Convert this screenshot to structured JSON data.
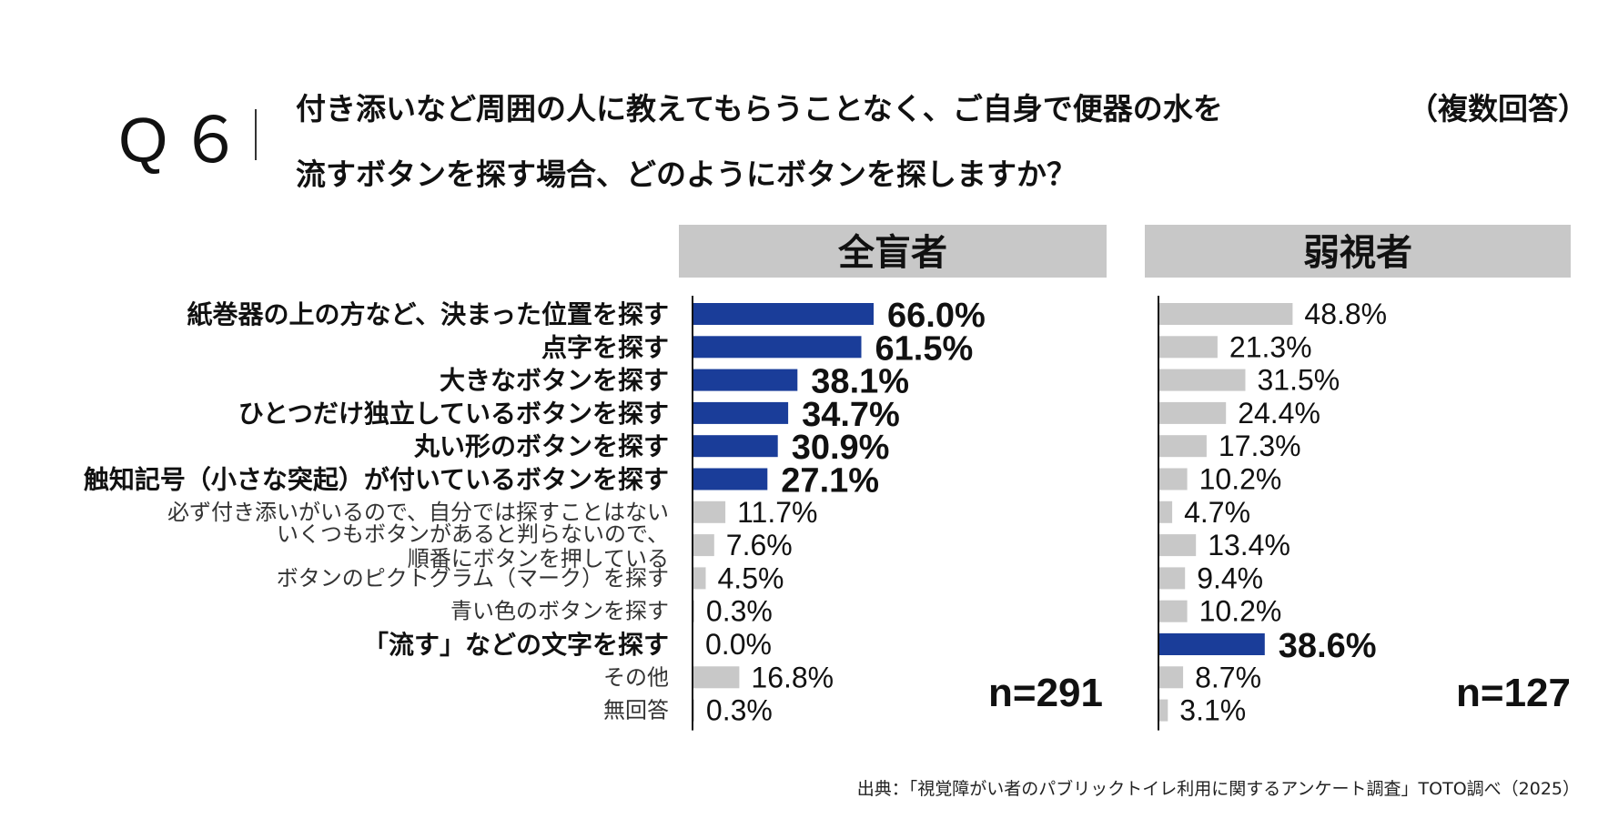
{
  "question": {
    "number": "Q６",
    "line1": "付き添いなど周囲の人に教えてもらうことなく、ご自身で便器の水を",
    "line2": "流すボタンを探す場合、どのようにボタンを探しますか？",
    "note": "（複数回答）"
  },
  "source": "出典：「視覚障がい者のパブリックトイレ利用に関するアンケート調査」TOTO調べ（2025）",
  "colors": {
    "highlight": "#1a3d99",
    "normal": "#c8c8c8",
    "header_bg": "#c8c8c8"
  },
  "chart_data": {
    "type": "bar",
    "orientation": "horizontal",
    "categories": [
      "紙巻器の上の方など、決まった位置を探す",
      "点字を探す",
      "大きなボタンを探す",
      "ひとつだけ独立しているボタンを探す",
      "丸い形のボタンを探す",
      "触知記号（小さな突起）が付いているボタンを探す",
      "必ず付き添いがいるので、自分では探すことはない",
      "いくつもボタンがあると判らないので、\n順番にボタンを押している",
      "ボタンのピクトグラム（マーク）を探す",
      "青い色のボタンを探す",
      "「流す」などの文字を探す",
      "その他",
      "無回答"
    ],
    "bold_categories": [
      0,
      1,
      2,
      3,
      4,
      5,
      10
    ],
    "series": [
      {
        "name": "全盲者",
        "n": "n=291",
        "values": [
          66.0,
          61.5,
          38.1,
          34.7,
          30.9,
          27.1,
          11.7,
          7.6,
          4.5,
          0.3,
          0.0,
          16.8,
          0.3
        ],
        "labels": [
          "66.0%",
          "61.5%",
          "38.1%",
          "34.7%",
          "30.9%",
          "27.1%",
          "11.7%",
          "7.6%",
          "4.5%",
          "0.3%",
          "0.0%",
          "16.8%",
          "0.3%"
        ],
        "highlight": [
          0,
          1,
          2,
          3,
          4,
          5
        ]
      },
      {
        "name": "弱視者",
        "n": "n=127",
        "values": [
          48.8,
          21.3,
          31.5,
          24.4,
          17.3,
          10.2,
          4.7,
          13.4,
          9.4,
          10.2,
          38.6,
          8.7,
          3.1
        ],
        "labels": [
          "48.8%",
          "21.3%",
          "31.5%",
          "24.4%",
          "17.3%",
          "10.2%",
          "4.7%",
          "13.4%",
          "9.4%",
          "10.2%",
          "38.6%",
          "8.7%",
          "3.1%"
        ],
        "highlight": [
          10
        ]
      }
    ]
  }
}
